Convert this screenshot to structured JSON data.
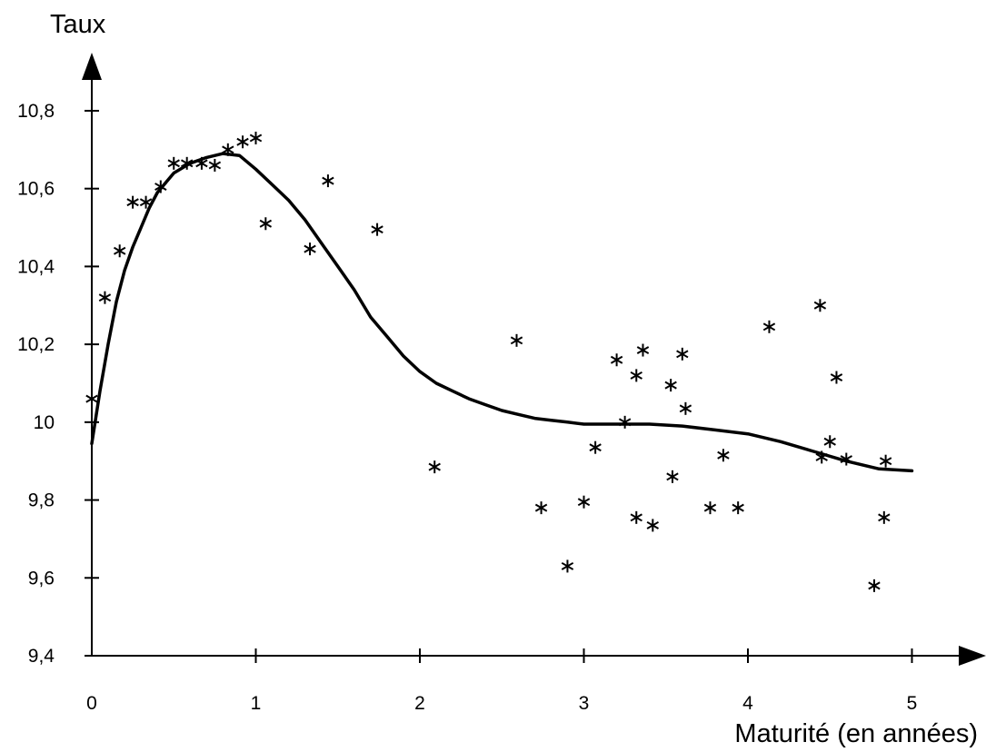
{
  "chart_data": {
    "type": "scatter",
    "title": "",
    "xlabel": "Maturité (en années)",
    "ylabel": "Taux",
    "xlim": [
      0,
      5
    ],
    "ylim": [
      9.4,
      10.8
    ],
    "xticks": [
      0,
      1,
      2,
      3,
      4,
      5
    ],
    "xtick_labels": [
      "0",
      "1",
      "2",
      "3",
      "4",
      "5"
    ],
    "yticks": [
      9.4,
      9.6,
      9.8,
      10.0,
      10.2,
      10.4,
      10.6,
      10.8
    ],
    "ytick_labels": [
      "9,4",
      "9,6",
      "9,8",
      "10",
      "10,2",
      "10,4",
      "10,6",
      "10,8"
    ],
    "grid": false,
    "legend": "none",
    "series": [
      {
        "kind": "scatter",
        "marker": "asterisk",
        "points": [
          [
            0.0,
            10.06
          ],
          [
            0.08,
            10.32
          ],
          [
            0.17,
            10.44
          ],
          [
            0.25,
            10.565
          ],
          [
            0.33,
            10.565
          ],
          [
            0.42,
            10.605
          ],
          [
            0.5,
            10.665
          ],
          [
            0.58,
            10.665
          ],
          [
            0.67,
            10.665
          ],
          [
            0.75,
            10.66
          ],
          [
            0.83,
            10.7
          ],
          [
            0.92,
            10.72
          ],
          [
            1.0,
            10.73
          ],
          [
            1.06,
            10.51
          ],
          [
            1.33,
            10.445
          ],
          [
            1.44,
            10.62
          ],
          [
            1.74,
            10.495
          ],
          [
            2.09,
            9.885
          ],
          [
            2.59,
            10.21
          ],
          [
            2.74,
            9.78
          ],
          [
            2.9,
            9.63
          ],
          [
            3.0,
            9.795
          ],
          [
            3.07,
            9.935
          ],
          [
            3.2,
            10.16
          ],
          [
            3.25,
            10.0
          ],
          [
            3.32,
            10.12
          ],
          [
            3.32,
            9.755
          ],
          [
            3.36,
            10.185
          ],
          [
            3.42,
            9.735
          ],
          [
            3.53,
            10.095
          ],
          [
            3.54,
            9.86
          ],
          [
            3.6,
            10.175
          ],
          [
            3.62,
            10.035
          ],
          [
            3.77,
            9.78
          ],
          [
            3.85,
            9.915
          ],
          [
            3.94,
            9.78
          ],
          [
            4.13,
            10.245
          ],
          [
            4.44,
            10.3
          ],
          [
            4.45,
            9.91
          ],
          [
            4.5,
            9.95
          ],
          [
            4.54,
            10.115
          ],
          [
            4.6,
            9.905
          ],
          [
            4.77,
            9.58
          ],
          [
            4.83,
            9.755
          ],
          [
            4.84,
            9.9
          ]
        ]
      },
      {
        "kind": "line",
        "style": "solid",
        "points": [
          [
            0.0,
            9.945
          ],
          [
            0.05,
            10.08
          ],
          [
            0.1,
            10.2
          ],
          [
            0.15,
            10.31
          ],
          [
            0.2,
            10.39
          ],
          [
            0.25,
            10.45
          ],
          [
            0.3,
            10.5
          ],
          [
            0.35,
            10.55
          ],
          [
            0.4,
            10.59
          ],
          [
            0.5,
            10.64
          ],
          [
            0.6,
            10.665
          ],
          [
            0.7,
            10.68
          ],
          [
            0.8,
            10.69
          ],
          [
            0.9,
            10.685
          ],
          [
            1.0,
            10.65
          ],
          [
            1.1,
            10.61
          ],
          [
            1.2,
            10.57
          ],
          [
            1.3,
            10.52
          ],
          [
            1.4,
            10.46
          ],
          [
            1.5,
            10.4
          ],
          [
            1.6,
            10.34
          ],
          [
            1.7,
            10.27
          ],
          [
            1.8,
            10.22
          ],
          [
            1.9,
            10.17
          ],
          [
            2.0,
            10.13
          ],
          [
            2.1,
            10.1
          ],
          [
            2.2,
            10.08
          ],
          [
            2.3,
            10.06
          ],
          [
            2.4,
            10.045
          ],
          [
            2.5,
            10.03
          ],
          [
            2.6,
            10.02
          ],
          [
            2.7,
            10.01
          ],
          [
            2.8,
            10.005
          ],
          [
            2.9,
            10.0
          ],
          [
            3.0,
            9.995
          ],
          [
            3.2,
            9.995
          ],
          [
            3.4,
            9.995
          ],
          [
            3.6,
            9.99
          ],
          [
            3.8,
            9.98
          ],
          [
            4.0,
            9.97
          ],
          [
            4.2,
            9.95
          ],
          [
            4.4,
            9.925
          ],
          [
            4.6,
            9.9
          ],
          [
            4.8,
            9.88
          ],
          [
            5.0,
            9.875
          ]
        ]
      }
    ]
  }
}
